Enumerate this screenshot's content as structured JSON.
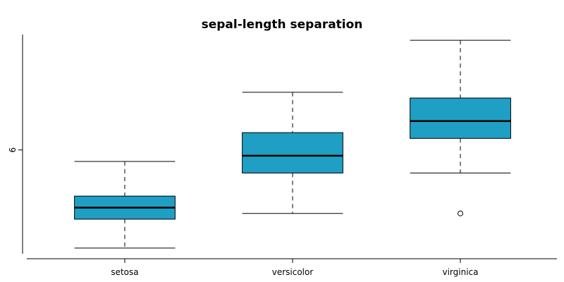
{
  "chart_data": {
    "type": "box",
    "title": "sepal-length separation",
    "xlabel": "",
    "ylabel": "",
    "categories": [
      "setosa",
      "versicolor",
      "virginica"
    ],
    "box_color": "#1f9fc3",
    "ylim": [
      4.2,
      8.0
    ],
    "yticks": [
      6
    ],
    "series": [
      {
        "category": "setosa",
        "whisker_low": 4.3,
        "q1": 4.8,
        "median": 5.0,
        "q3": 5.2,
        "whisker_high": 5.8,
        "outliers": []
      },
      {
        "category": "versicolor",
        "whisker_low": 4.9,
        "q1": 5.6,
        "median": 5.9,
        "q3": 6.3,
        "whisker_high": 7.0,
        "outliers": []
      },
      {
        "category": "virginica",
        "whisker_low": 5.6,
        "q1": 6.2,
        "median": 6.5,
        "q3": 6.9,
        "whisker_high": 7.9,
        "outliers": [
          4.9
        ]
      }
    ],
    "grid": false,
    "legend": "none"
  }
}
